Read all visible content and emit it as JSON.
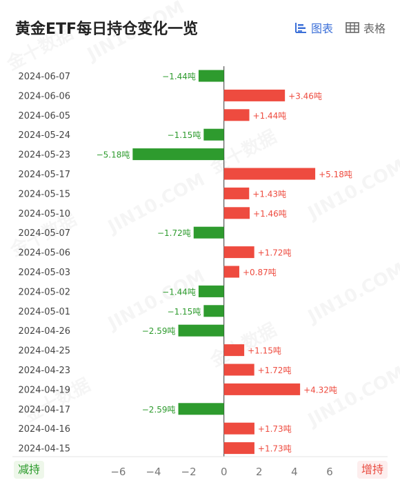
{
  "header": {
    "title": "黄金ETF每日持仓变化一览",
    "chart_tab_label": "图表",
    "table_tab_label": "表格"
  },
  "watermark_text": "金十数据",
  "watermark_text_latin": "JIN10.COM",
  "legend": {
    "decrease_label": "减持",
    "increase_label": "增持"
  },
  "colors": {
    "increase": "#ee4b3f",
    "decrease": "#2e9b2e",
    "accent": "#3b6fd8"
  },
  "chart_data": {
    "type": "bar",
    "orientation": "horizontal",
    "categories": [
      "2024-06-07",
      "2024-06-06",
      "2024-06-05",
      "2024-05-24",
      "2024-05-23",
      "2024-05-17",
      "2024-05-15",
      "2024-05-10",
      "2024-05-07",
      "2024-05-06",
      "2024-05-03",
      "2024-05-02",
      "2024-05-01",
      "2024-04-26",
      "2024-04-25",
      "2024-04-23",
      "2024-04-19",
      "2024-04-17",
      "2024-04-16",
      "2024-04-15"
    ],
    "values": [
      -1.44,
      3.46,
      1.44,
      -1.15,
      -5.18,
      5.18,
      1.43,
      1.46,
      -1.72,
      1.72,
      0.87,
      -1.44,
      -1.15,
      -2.59,
      1.15,
      1.72,
      4.32,
      -2.59,
      1.73,
      1.73
    ],
    "labels": [
      "−1.44吨",
      "+3.46吨",
      "+1.44吨",
      "−1.15吨",
      "−5.18吨",
      "+5.18吨",
      "+1.43吨",
      "+1.46吨",
      "−1.72吨",
      "+1.72吨",
      "+0.87吨",
      "−1.44吨",
      "−1.15吨",
      "−2.59吨",
      "+1.15吨",
      "+1.72吨",
      "+4.32吨",
      "−2.59吨",
      "+1.73吨",
      "+1.73吨"
    ],
    "xlim": [
      -6.25,
      9.05
    ],
    "xticks": [
      -6,
      -4,
      -2,
      0,
      2,
      4,
      6
    ],
    "xtick_labels": [
      "−6",
      "−4",
      "−2",
      "0",
      "2",
      "4",
      "6"
    ],
    "grid": false
  }
}
